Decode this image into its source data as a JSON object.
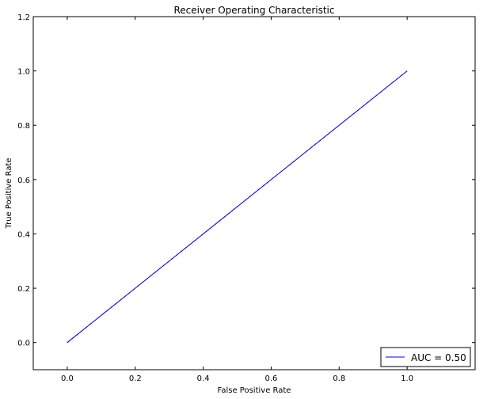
{
  "chart_data": {
    "type": "line",
    "title": "Receiver Operating Characteristic",
    "xlabel": "False Positive Rate",
    "ylabel": "True Positive Rate",
    "xlim": [
      -0.1,
      1.2
    ],
    "ylim": [
      -0.1,
      1.2
    ],
    "x_ticks": [
      "0.0",
      "0.2",
      "0.4",
      "0.6",
      "0.8",
      "1.0"
    ],
    "y_ticks": [
      "0.0",
      "0.2",
      "0.4",
      "0.6",
      "0.8",
      "1.0",
      "1.2"
    ],
    "grid": false,
    "legend_position": "lower right",
    "series": [
      {
        "name": "AUC = 0.50",
        "style": "solid",
        "color": "#0000ff",
        "x": [
          0.0,
          1.0
        ],
        "y": [
          0.0,
          1.0
        ]
      },
      {
        "style": "dashed",
        "color": "#ff0000",
        "x": [
          0.0,
          1.0
        ],
        "y": [
          0.0,
          1.0
        ]
      }
    ]
  }
}
